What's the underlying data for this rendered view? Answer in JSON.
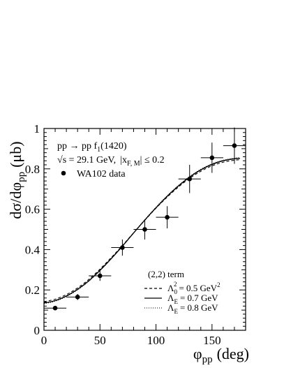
{
  "chart_data": {
    "type": "line",
    "title": "",
    "xlabel_main": "φ",
    "xlabel_sub": "pp",
    "xlabel_unit": "(deg)",
    "ylabel_main": "dσ/dφ",
    "ylabel_sub": "pp",
    "ylabel_unit": "(μb)",
    "xlim": [
      0,
      180
    ],
    "ylim": [
      0,
      1
    ],
    "x_ticks": [
      0,
      50,
      100,
      150
    ],
    "y_ticks": [
      0,
      0.2,
      0.4,
      0.6,
      0.8,
      1
    ],
    "x_tick_labels": [
      "0",
      "50",
      "100",
      "150"
    ],
    "y_tick_labels": [
      "0",
      "0.2",
      "0.4",
      "0.6",
      "0.8",
      "1"
    ],
    "grid": false,
    "process": {
      "main": "pp → pp f",
      "sub": "1",
      "tail": "(1420)"
    },
    "kinematics": {
      "sqrt": "√",
      "s_part": "s = 29.1 GeV,",
      "xf_part": "|x",
      "xf_sub": "F, M",
      "xf_tail": "| ≤ 0.2"
    },
    "data_series": {
      "name": "WA102 data",
      "points": [
        {
          "x": 10,
          "y": 0.11,
          "xerr": 10,
          "yerr": 0.01
        },
        {
          "x": 30,
          "y": 0.165,
          "xerr": 10,
          "yerr": 0.015
        },
        {
          "x": 50,
          "y": 0.27,
          "xerr": 10,
          "yerr": 0.025
        },
        {
          "x": 70,
          "y": 0.41,
          "xerr": 10,
          "yerr": 0.04
        },
        {
          "x": 90,
          "y": 0.5,
          "xerr": 10,
          "yerr": 0.05
        },
        {
          "x": 110,
          "y": 0.56,
          "xerr": 10,
          "yerr": 0.055
        },
        {
          "x": 130,
          "y": 0.75,
          "xerr": 10,
          "yerr": 0.07
        },
        {
          "x": 150,
          "y": 0.855,
          "xerr": 10,
          "yerr": 0.075
        },
        {
          "x": 170,
          "y": 0.915,
          "xerr": 10,
          "yerr": 0.09
        }
      ]
    },
    "model_legend_title": "(2,2) term",
    "model_curves": [
      {
        "legend_main": "Λ",
        "legend_sub": "0",
        "legend_sup": "2",
        "legend_tail": "= 0.5 GeV",
        "legend_tail_sup": "2",
        "style": "dashed",
        "x": [
          0,
          10,
          20,
          30,
          40,
          50,
          60,
          70,
          80,
          90,
          100,
          110,
          120,
          130,
          140,
          150,
          160,
          170,
          175
        ],
        "y": [
          0.142,
          0.154,
          0.177,
          0.21,
          0.252,
          0.303,
          0.36,
          0.42,
          0.483,
          0.545,
          0.605,
          0.66,
          0.71,
          0.753,
          0.788,
          0.815,
          0.833,
          0.843,
          0.845
        ]
      },
      {
        "legend_main": "Λ",
        "legend_sub": "E",
        "legend_sup": "",
        "legend_tail": "= 0.7 GeV",
        "legend_tail_sup": "",
        "style": "solid",
        "x": [
          0,
          10,
          20,
          30,
          40,
          50,
          60,
          70,
          80,
          90,
          100,
          110,
          120,
          130,
          140,
          150,
          160,
          170,
          175
        ],
        "y": [
          0.135,
          0.147,
          0.17,
          0.203,
          0.245,
          0.297,
          0.355,
          0.417,
          0.482,
          0.546,
          0.607,
          0.664,
          0.715,
          0.759,
          0.795,
          0.822,
          0.84,
          0.85,
          0.852
        ]
      },
      {
        "legend_main": "Λ",
        "legend_sub": "E",
        "legend_sup": "",
        "legend_tail": "= 0.8 GeV",
        "legend_tail_sup": "",
        "style": "dotted",
        "x": [
          0,
          10,
          20,
          30,
          40,
          50,
          60,
          70,
          80,
          90,
          100,
          110,
          120,
          130,
          140,
          150,
          160,
          170,
          175
        ],
        "y": [
          0.132,
          0.144,
          0.167,
          0.2,
          0.243,
          0.295,
          0.354,
          0.417,
          0.483,
          0.548,
          0.61,
          0.667,
          0.718,
          0.762,
          0.798,
          0.825,
          0.843,
          0.853,
          0.855
        ]
      }
    ],
    "colors": {
      "axis": "#000000",
      "data": "#000000",
      "curves": "#000000"
    }
  }
}
